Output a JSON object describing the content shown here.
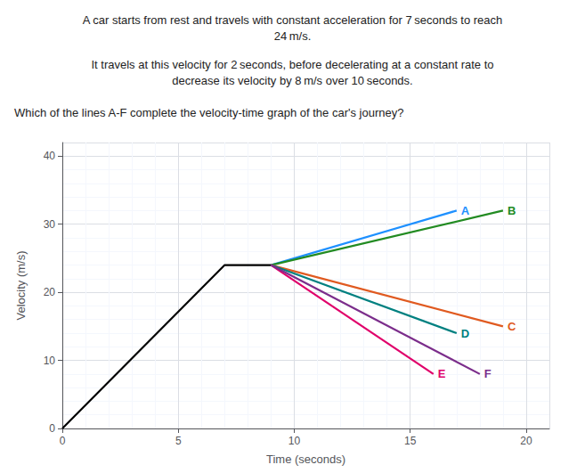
{
  "chart_data": {
    "type": "line",
    "title": [
      "A car starts from rest and travels with constant acceleration for 7 seconds to reach",
      "24 m/s."
    ],
    "subtitle": [
      "It travels at this velocity for 2 seconds, before decelerating at a constant rate to",
      "decrease its velocity by 8 m/s over 10 seconds."
    ],
    "annotations": [
      "Which of the lines A-F complete the velocity-time graph of the car's journey?"
    ],
    "xlabel": "Time (seconds)",
    "ylabel": "Velocity (m/s)",
    "xlim": [
      0,
      21
    ],
    "ylim": [
      0,
      42
    ],
    "xticks": [
      0,
      5,
      10,
      15,
      20
    ],
    "yticks": [
      0,
      10,
      20,
      30,
      40
    ],
    "grid": true,
    "series": [
      {
        "color": "#000000",
        "x": [
          0,
          7,
          9
        ],
        "values": [
          0,
          24,
          24
        ]
      },
      {
        "name": "A",
        "color": "#1e90ff",
        "x": [
          9,
          17
        ],
        "values": [
          24,
          32
        ]
      },
      {
        "name": "B",
        "color": "#228b22",
        "x": [
          9,
          19
        ],
        "values": [
          24,
          32
        ]
      },
      {
        "name": "C",
        "color": "#e05a20",
        "x": [
          9,
          19
        ],
        "values": [
          24,
          15
        ]
      },
      {
        "name": "D",
        "color": "#008080",
        "x": [
          9,
          17
        ],
        "values": [
          24,
          14
        ]
      },
      {
        "name": "E",
        "color": "#e0006a",
        "x": [
          9,
          16
        ],
        "values": [
          24,
          8
        ]
      },
      {
        "name": "F",
        "color": "#7b2d8b",
        "x": [
          9,
          18
        ],
        "values": [
          24,
          8
        ]
      }
    ]
  }
}
